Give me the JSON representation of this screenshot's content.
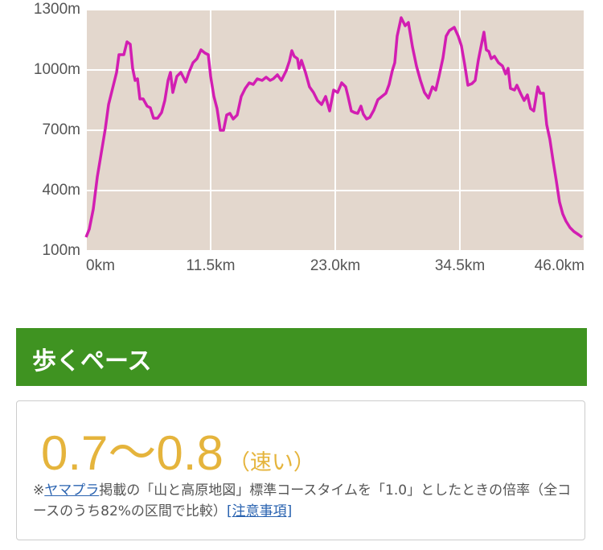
{
  "chart_data": {
    "type": "line",
    "xlim": [
      0,
      46
    ],
    "ylim": [
      100,
      1300
    ],
    "xticks": [
      {
        "value": 0,
        "label": "0km"
      },
      {
        "value": 11.5,
        "label": "11.5km"
      },
      {
        "value": 23,
        "label": "23.0km"
      },
      {
        "value": 34.5,
        "label": "34.5km"
      },
      {
        "value": 46,
        "label": "46.0km"
      }
    ],
    "yticks": [
      {
        "value": 100,
        "label": "100m"
      },
      {
        "value": 400,
        "label": "400m"
      },
      {
        "value": 700,
        "label": "700m"
      },
      {
        "value": 1000,
        "label": "1000m"
      },
      {
        "value": 1300,
        "label": "1300m"
      }
    ],
    "grid": true,
    "series": [
      {
        "color": "#d21eb2",
        "x": [
          0,
          0.3,
          0.67,
          1.04,
          1.41,
          1.78,
          2.08,
          2.45,
          2.82,
          3.04,
          3.49,
          3.78,
          4.08,
          4.3,
          4.53,
          4.75,
          4.97,
          5.27,
          5.64,
          5.93,
          6.23,
          6.6,
          6.97,
          7.27,
          7.57,
          7.79,
          8.01,
          8.38,
          8.75,
          9.2,
          9.5,
          9.87,
          10.24,
          10.61,
          10.98,
          11.28,
          11.5,
          11.8,
          12.09,
          12.39,
          12.69,
          12.98,
          13.28,
          13.58,
          13.95,
          14.32,
          14.69,
          15.06,
          15.43,
          15.8,
          16.25,
          16.62,
          16.99,
          17.28,
          17.66,
          18.03,
          18.47,
          18.77,
          18.99,
          19.21,
          19.51,
          19.66,
          19.88,
          20.25,
          20.62,
          20.99,
          21.36,
          21.74,
          22.11,
          22.48,
          22.85,
          23.22,
          23.59,
          23.96,
          24.18,
          24.48,
          24.78,
          25.07,
          25.37,
          25.59,
          25.89,
          26.19,
          26.56,
          26.93,
          27.3,
          27.67,
          27.97,
          28.26,
          28.49,
          28.71,
          29.08,
          29.45,
          29.75,
          30.12,
          30.49,
          30.86,
          31.23,
          31.6,
          31.97,
          32.27,
          32.57,
          32.94,
          33.23,
          33.53,
          33.98,
          34.35,
          34.64,
          34.94,
          35.24,
          35.61,
          35.91,
          36.2,
          36.42,
          36.72,
          36.94,
          37.17,
          37.39,
          37.69,
          38.06,
          38.43,
          38.72,
          38.95,
          39.17,
          39.54,
          39.76,
          40.13,
          40.43,
          40.73,
          41.02,
          41.32,
          41.69,
          41.91,
          42.21,
          42.51,
          42.8,
          43.1,
          43.4,
          43.69,
          43.99,
          44.29,
          44.66,
          45.03,
          45.47,
          45.77
        ],
        "values": [
          168,
          208,
          308,
          468,
          588,
          708,
          828,
          908,
          988,
          1076,
          1076,
          1140,
          1128,
          1008,
          948,
          956,
          856,
          856,
          820,
          812,
          760,
          760,
          788,
          848,
          948,
          988,
          888,
          968,
          988,
          940,
          988,
          1036,
          1056,
          1100,
          1084,
          1076,
          968,
          868,
          808,
          700,
          700,
          776,
          784,
          756,
          776,
          868,
          908,
          936,
          928,
          956,
          948,
          964,
          948,
          956,
          976,
          948,
          996,
          1044,
          1096,
          1068,
          1056,
          1008,
          1048,
          988,
          916,
          888,
          848,
          828,
          868,
          796,
          900,
          888,
          936,
          916,
          868,
          796,
          788,
          784,
          820,
          780,
          756,
          764,
          800,
          852,
          868,
          884,
          928,
          996,
          1036,
          1168,
          1260,
          1220,
          1236,
          1116,
          1020,
          948,
          888,
          860,
          916,
          900,
          968,
          1060,
          1168,
          1196,
          1212,
          1168,
          1120,
          1028,
          924,
          932,
          948,
          1048,
          1108,
          1188,
          1100,
          1092,
          1056,
          1068,
          1036,
          1020,
          980,
          1008,
          908,
          900,
          924,
          880,
          848,
          876,
          808,
          796,
          916,
          884,
          884,
          728,
          656,
          548,
          448,
          344,
          284,
          248,
          216,
          196,
          180,
          168
        ]
      }
    ]
  },
  "pace": {
    "title": "歩くペース",
    "value": "0.7～0.8",
    "speed": "（速い）",
    "note_mark": "※",
    "note_link": "ヤマプラ",
    "note_text": "掲載の「山と高原地図」標準コースタイムを「1.0」としたときの倍率（全コースのうち82%の区間で比較）",
    "note_link2": "[注意事項]"
  }
}
